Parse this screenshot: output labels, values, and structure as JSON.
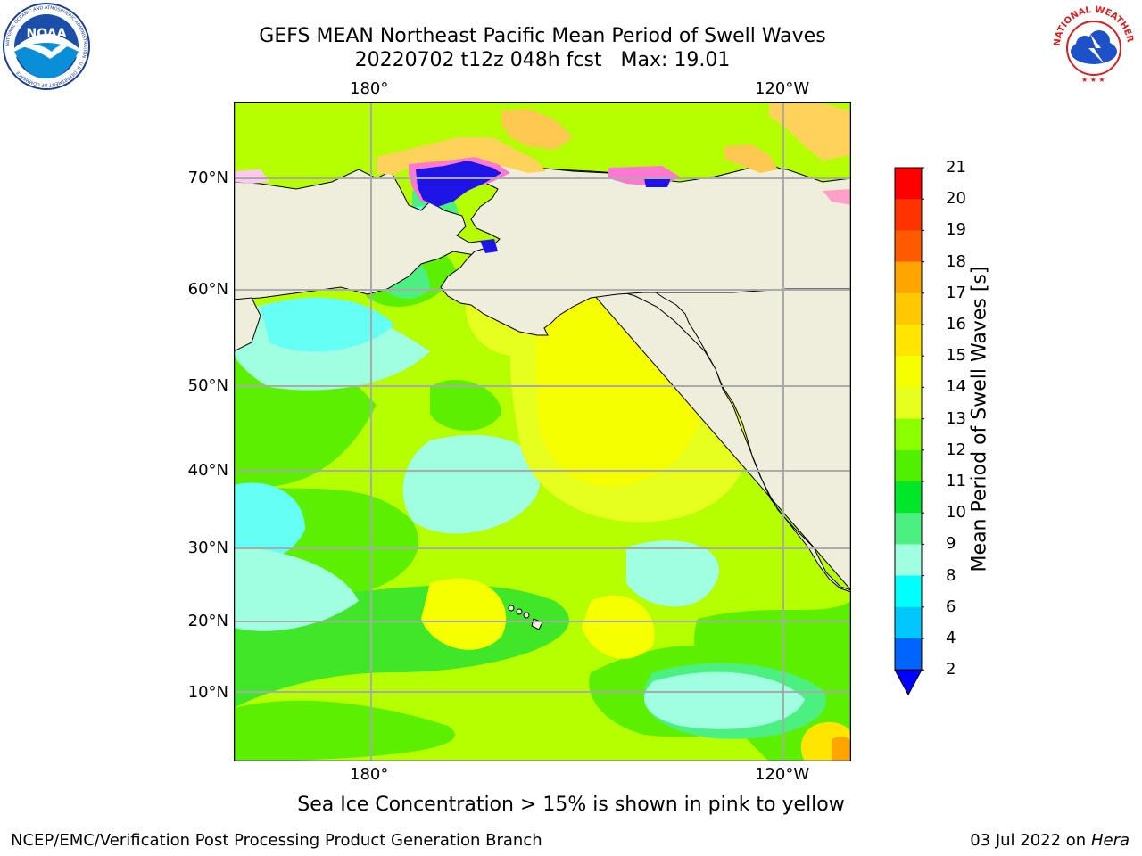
{
  "title_line1": "GEFS MEAN Northeast Pacific Mean Period of Swell Waves",
  "title_line2": "20220702 t12z 048h fcst   Max: 19.01",
  "logos": {
    "noaa": "NOAA",
    "noaa_ring": "NATIONAL OCEANIC AND ATMOSPHERIC ADMINISTRATION · U.S. DEPARTMENT OF COMMERCE",
    "nws_ring": "NATIONAL WEATHER SERVICE"
  },
  "map": {
    "lon_labels": [
      "180°",
      "120°W"
    ],
    "lat_labels": [
      "70°N",
      "60°N",
      "50°N",
      "40°N",
      "30°N",
      "20°N",
      "10°N"
    ],
    "land_color": "#efeddb",
    "grid": true
  },
  "colorbar": {
    "title": "Mean Period of Swell Waves [s]",
    "ticks": [
      "21",
      "20",
      "19",
      "18",
      "17",
      "16",
      "15",
      "14",
      "13",
      "12",
      "11",
      "10",
      "9",
      "8",
      "6",
      "4",
      "2"
    ],
    "colors": [
      "#ff0000",
      "#ff3300",
      "#ff5a00",
      "#ff7f00",
      "#ffa500",
      "#ffc800",
      "#ffe600",
      "#f5ff00",
      "#e6ff1e",
      "#c0ff00",
      "#8cff00",
      "#50f000",
      "#00e628",
      "#4cf080",
      "#a0ffe0",
      "#64fff5",
      "#00ffff",
      "#00c8ff",
      "#0064ff"
    ],
    "extend_color": "#0000ff"
  },
  "caption": "Sea Ice Concentration > 15% is shown in pink to yellow",
  "footer_left": "NCEP/EMC/Verification Post Processing Product Generation Branch",
  "footer_date": "03 Jul 2022 on ",
  "footer_host": "Hera"
}
